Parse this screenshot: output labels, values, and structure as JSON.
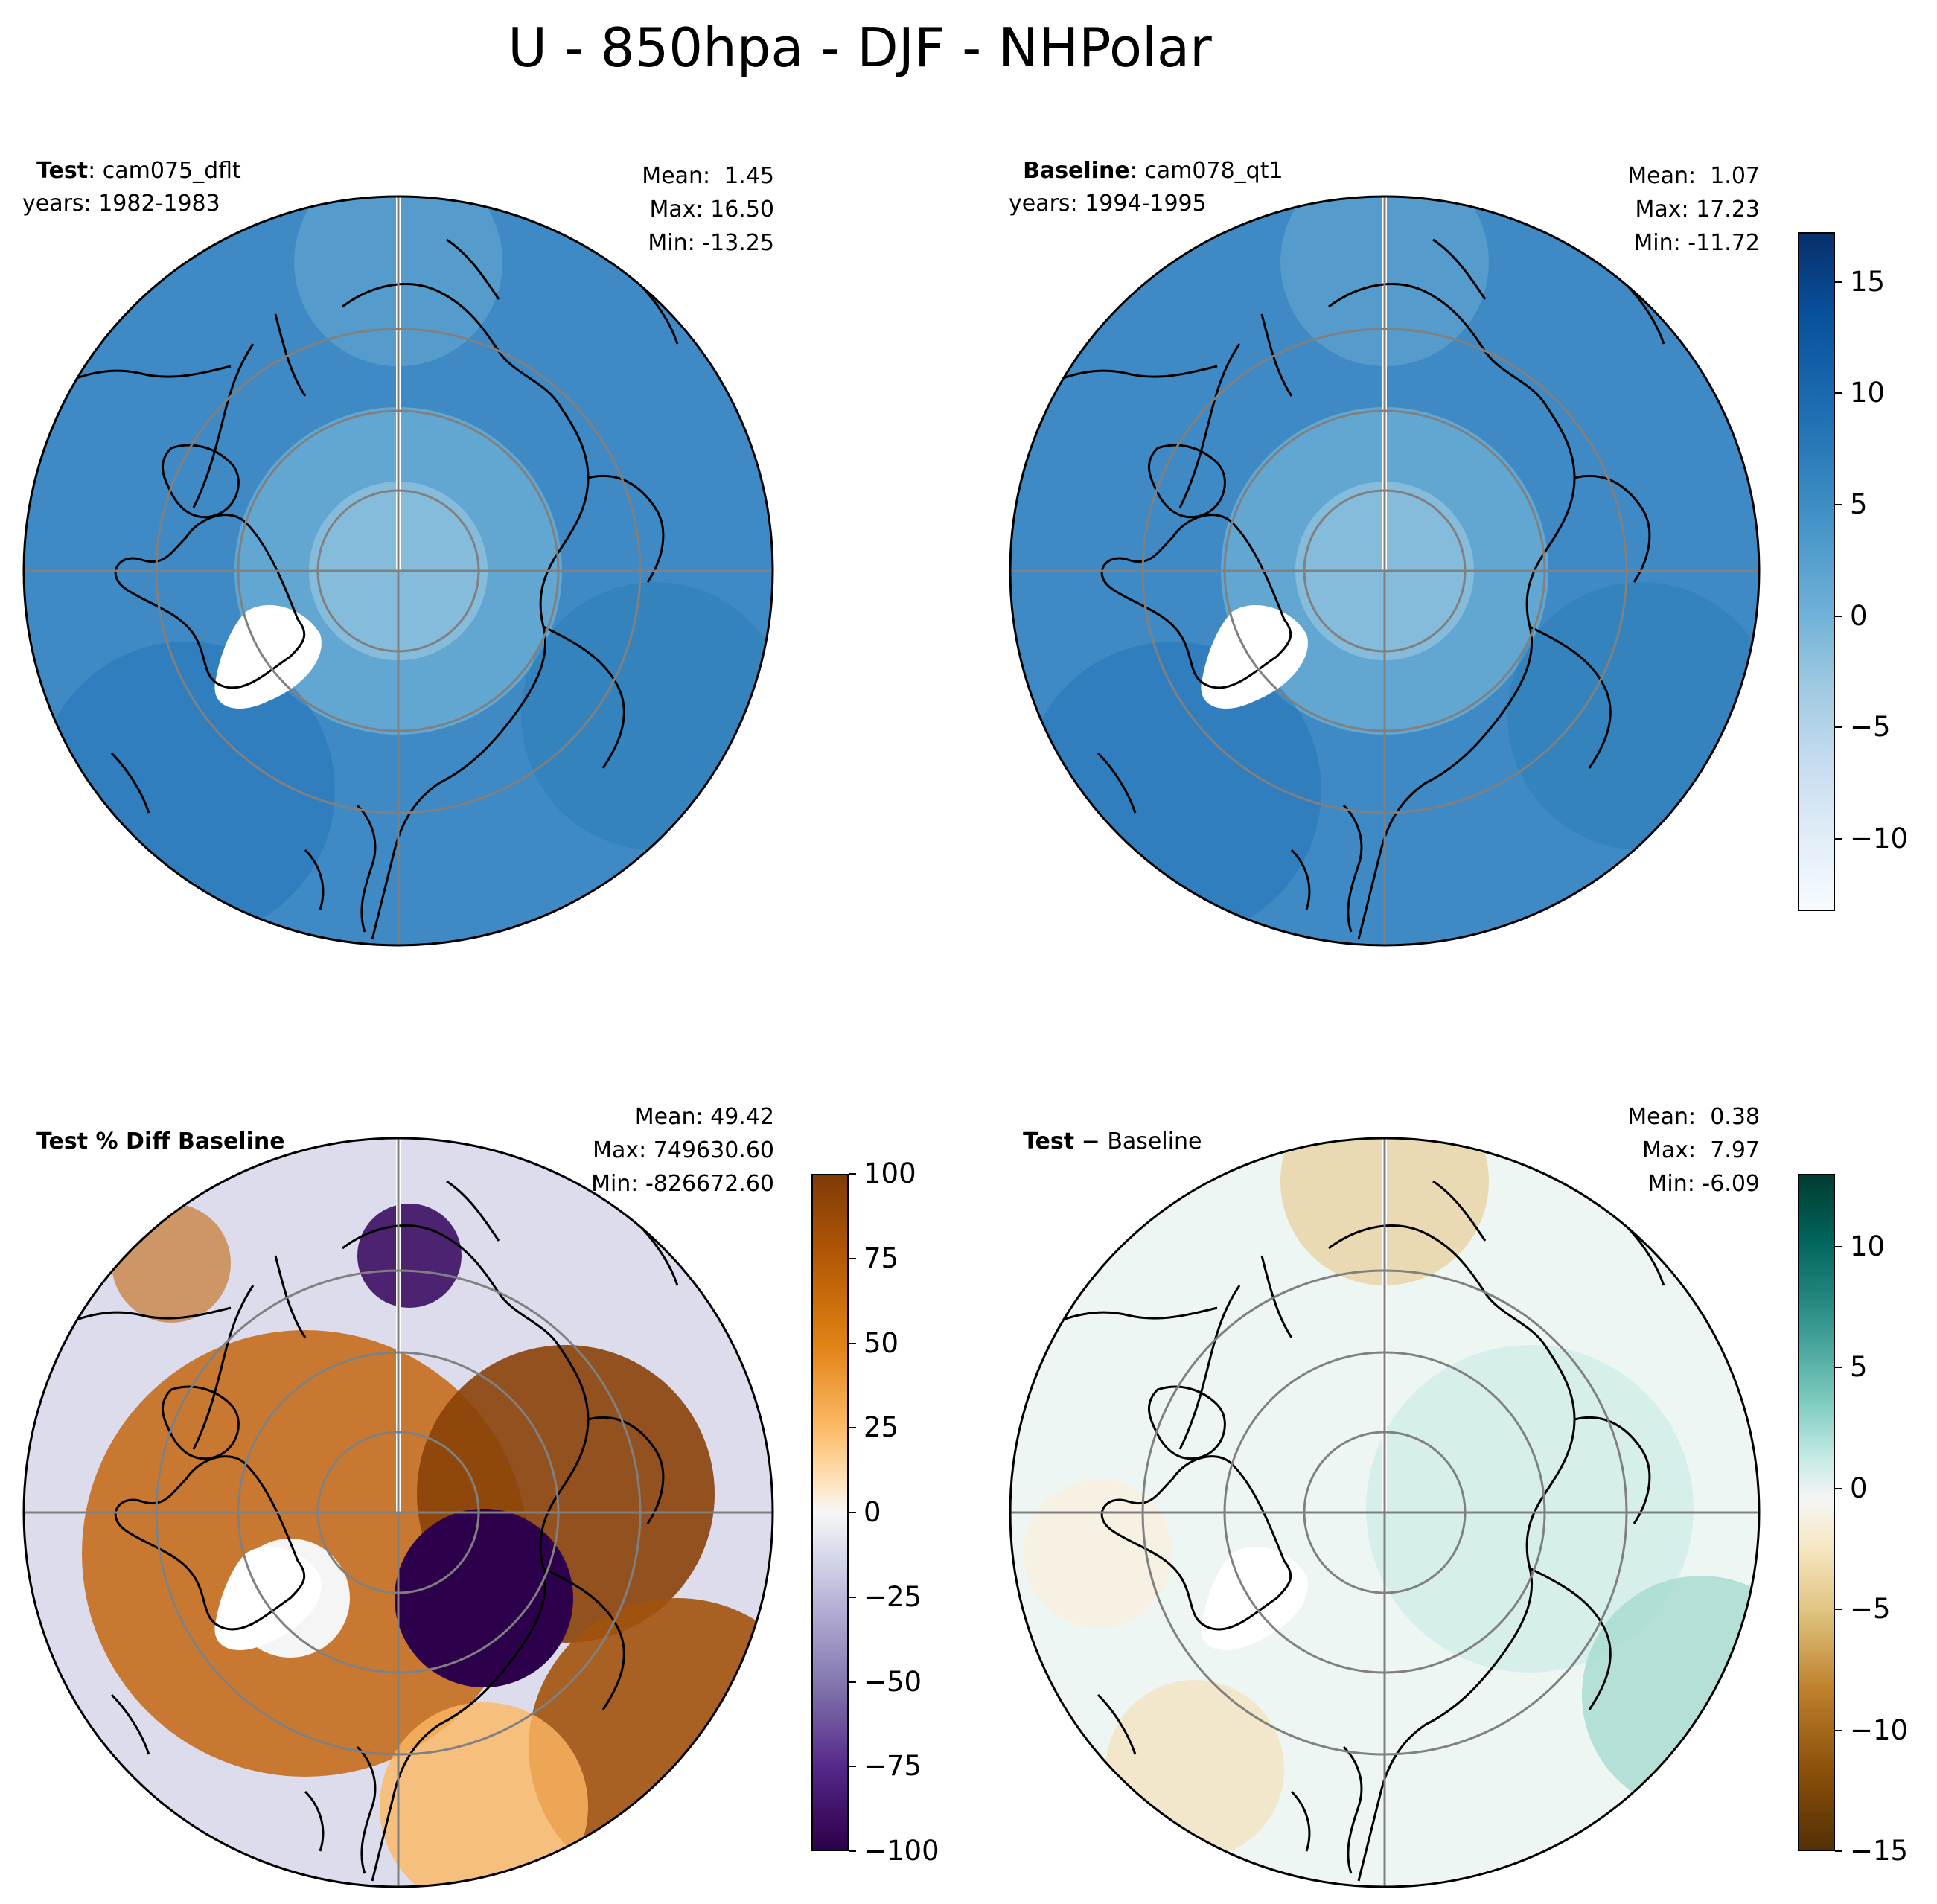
{
  "title": "U - 850hpa - DJF - NHPolar",
  "panels": [
    {
      "id": "test",
      "label_bold": "Test",
      "label_rest": ": cam075_dflt",
      "years": "years: 1982-1983",
      "mean": "Mean:  1.45",
      "max": "Max: 16.50",
      "min": "Min: -13.25",
      "cmap": "Blues"
    },
    {
      "id": "baseline",
      "label_bold": "Baseline",
      "label_rest": ": cam078_qt1",
      "years": "years: 1994-1995",
      "mean": "Mean:  1.07",
      "max": "Max: 17.23",
      "min": "Min: -11.72",
      "cmap": "Blues"
    },
    {
      "id": "pctdiff",
      "label_bold": "Test % Diff Baseline",
      "label_rest": "",
      "years": "",
      "mean": "Mean: 49.42",
      "max": "Max: 749630.60",
      "min": "Min: -826672.60",
      "cmap": "PuOr"
    },
    {
      "id": "diff",
      "label_bold": "Test",
      "label_rest": " − Baseline",
      "label_bold2": "Baseline",
      "years": "",
      "mean": "Mean:  0.38",
      "max": "Max:  7.97",
      "min": "Min: -6.09",
      "cmap": "BrBG"
    }
  ],
  "colorbars": {
    "top": {
      "range": [
        -13.25,
        17.23
      ],
      "ticks": [
        "15",
        "10",
        "5",
        "0",
        "−5",
        "−10"
      ],
      "values": [
        15,
        10,
        5,
        0,
        -5,
        -10
      ]
    },
    "pct": {
      "range": [
        -100,
        100
      ],
      "ticks": [
        "100",
        "75",
        "50",
        "25",
        "0",
        "−25",
        "−50",
        "−75",
        "−100"
      ],
      "values": [
        100,
        75,
        50,
        25,
        0,
        -25,
        -50,
        -75,
        -100
      ]
    },
    "diff": {
      "range": [
        -15,
        13
      ],
      "ticks": [
        "10",
        "5",
        "0",
        "−5",
        "−10",
        "−15"
      ],
      "values": [
        10,
        5,
        0,
        -5,
        -10,
        -15
      ]
    }
  },
  "colors": {
    "blues_dark": "#08306b",
    "blues_mid": "#3b87c2",
    "blues_light": "#f7fbff",
    "puor_orange": "#7f3b08",
    "puor_purple": "#2d004b",
    "brbg_teal": "#003c30",
    "brbg_brown": "#543005",
    "grid": "#808080",
    "coast": "#000000"
  },
  "chart_data": {
    "type": "heatmap",
    "projection": "north-polar-stereographic",
    "variable": "U",
    "level": "850hpa",
    "season": "DJF",
    "region": "NHPolar",
    "panels": [
      {
        "name": "Test",
        "case": "cam075_dflt",
        "years": "1982-1983",
        "mean": 1.45,
        "max": 16.5,
        "min": -13.25
      },
      {
        "name": "Baseline",
        "case": "cam078_qt1",
        "years": "1994-1995",
        "mean": 1.07,
        "max": 17.23,
        "min": -11.72
      },
      {
        "name": "Test % Diff Baseline",
        "mean": 49.42,
        "max": 749630.6,
        "min": -826672.6
      },
      {
        "name": "Test - Baseline",
        "mean": 0.38,
        "max": 7.97,
        "min": -6.09
      }
    ],
    "colorbar_ranges": {
      "test_baseline": [
        -13.25,
        17.23
      ],
      "pct_diff": [
        -100,
        100
      ],
      "diff": [
        -15,
        13
      ]
    }
  }
}
